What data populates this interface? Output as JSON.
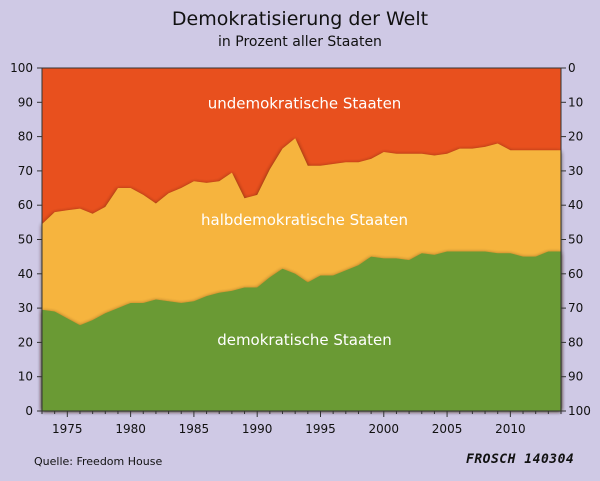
{
  "header": {
    "title": "Demokratisierung der Welt",
    "subtitle": "in Prozent aller Staaten"
  },
  "footer": {
    "source": "Quelle: Freedom House",
    "signature": "FROSCH 140304"
  },
  "colors": {
    "background": "#cfc9e5",
    "demokratisch": "#6a9a34",
    "halbdemokratisch": "#f6b43e",
    "undemokratisch": "#e8501e"
  },
  "chart_data": {
    "type": "area",
    "stacked": true,
    "x": [
      1973,
      1974,
      1975,
      1976,
      1977,
      1978,
      1979,
      1980,
      1981,
      1982,
      1983,
      1984,
      1985,
      1986,
      1987,
      1988,
      1989,
      1990,
      1991,
      1992,
      1993,
      1994,
      1995,
      1996,
      1997,
      1998,
      1999,
      2000,
      2001,
      2002,
      2003,
      2004,
      2005,
      2006,
      2007,
      2008,
      2009,
      2010,
      2011,
      2012,
      2013
    ],
    "series": [
      {
        "name": "demokratische Staaten",
        "values": [
          29.5,
          29,
          27,
          25,
          26.5,
          28.5,
          30,
          31.5,
          31.5,
          32.5,
          32,
          31.5,
          32,
          33.5,
          34.5,
          35,
          36,
          36,
          39,
          41.5,
          40,
          37.5,
          39.5,
          39.5,
          41,
          42.5,
          45,
          44.5,
          44.5,
          44,
          46,
          45.5,
          46.5,
          46.5,
          46.5,
          46.5,
          46,
          46,
          45,
          45,
          46.5
        ]
      },
      {
        "name": "halbdemokratische Staaten",
        "values": [
          25,
          29,
          31.5,
          34,
          31,
          31,
          35,
          33.5,
          31.5,
          28,
          31.5,
          33.5,
          35,
          33,
          32.5,
          34.5,
          26,
          27,
          31.5,
          35,
          39.5,
          34,
          32,
          32.5,
          31.5,
          30,
          28.5,
          31,
          30.5,
          31,
          29,
          29,
          28.5,
          30,
          30,
          30.5,
          32,
          30,
          31,
          31,
          29.5
        ]
      },
      {
        "name": "undemokratische Staaten",
        "values": [
          45.5,
          42,
          41.5,
          41,
          42.5,
          40.5,
          35,
          35,
          37,
          39.5,
          36.5,
          35,
          33,
          33.5,
          33,
          30.5,
          38,
          37,
          29.5,
          23.5,
          20.5,
          28.5,
          28.5,
          28,
          27.5,
          27.5,
          26.5,
          24.5,
          25,
          25,
          25,
          25.5,
          25,
          23.5,
          23.5,
          23,
          22,
          24,
          24,
          24,
          24
        ]
      }
    ],
    "yticks_left": [
      0,
      10,
      20,
      30,
      40,
      50,
      60,
      70,
      80,
      90,
      100
    ],
    "yticks_right": [
      100,
      90,
      80,
      70,
      60,
      50,
      40,
      30,
      20,
      10,
      0
    ],
    "xticks": [
      1975,
      1980,
      1985,
      1990,
      1995,
      2000,
      2005,
      2010
    ],
    "xlim": [
      1973,
      2014
    ],
    "ylim": [
      0,
      100
    ],
    "grid": false
  }
}
